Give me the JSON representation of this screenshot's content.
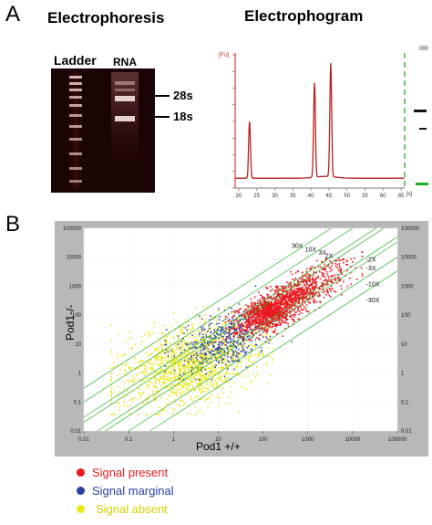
{
  "panel_a": {
    "letter": "A",
    "electrophoresis_title": "Electrophoresis",
    "electrophogram_title": "Electrophogram",
    "ladder_label": "Ladder",
    "rna_label": "RNA",
    "band_labels": [
      "28s",
      "18s"
    ],
    "electro_y_unit": "[FU]",
    "electro_x_unit": "[s]",
    "electro_x_ticks": [
      "20",
      "25",
      "30",
      "35",
      "40",
      "45",
      "50",
      "55",
      "60",
      "65"
    ]
  },
  "panel_b": {
    "letter": "B",
    "x_label": "Pod1 +/+",
    "y_label": "Pod1-/-",
    "x_ticks": [
      "0.01",
      "0.1",
      "1",
      "10",
      "100",
      "1000",
      "10000",
      "100000"
    ],
    "y_ticks": [
      "100000",
      "10000",
      "1000",
      "100",
      "10",
      "1",
      "0.1",
      "0.01"
    ],
    "fold_labels_top": [
      "30X",
      "10X",
      "3X",
      "2X"
    ],
    "fold_labels_right": [
      "2X",
      "3X",
      "10X",
      "30X"
    ]
  },
  "legend": [
    {
      "label": "Signal present",
      "color": "#e8191f"
    },
    {
      "label": "Signal marginal",
      "color": "#2b3fa3"
    },
    {
      "label": "Signal absent",
      "color": "#e8e81a"
    }
  ],
  "chart_data": [
    {
      "type": "line",
      "xlabel": "[s]",
      "ylabel": "[FU]",
      "xlim": [
        19,
        66
      ],
      "peaks": [
        {
          "x": 23,
          "height": 0.45
        },
        {
          "x": 41,
          "height": 0.75
        },
        {
          "x": 45.5,
          "height": 0.9
        }
      ]
    },
    {
      "type": "scatter",
      "xlabel": "Pod1 +/+",
      "ylabel": "Pod1-/-",
      "scale": "log",
      "xlim": [
        0.01,
        100000
      ],
      "ylim": [
        0.01,
        100000
      ],
      "fold_change_lines": [
        "30X",
        "10X",
        "3X",
        "2X"
      ],
      "series": [
        {
          "name": "Signal present",
          "color": "#e8191f"
        },
        {
          "name": "Signal marginal",
          "color": "#2b3fa3"
        },
        {
          "name": "Signal absent",
          "color": "#e8e81a"
        }
      ]
    }
  ]
}
